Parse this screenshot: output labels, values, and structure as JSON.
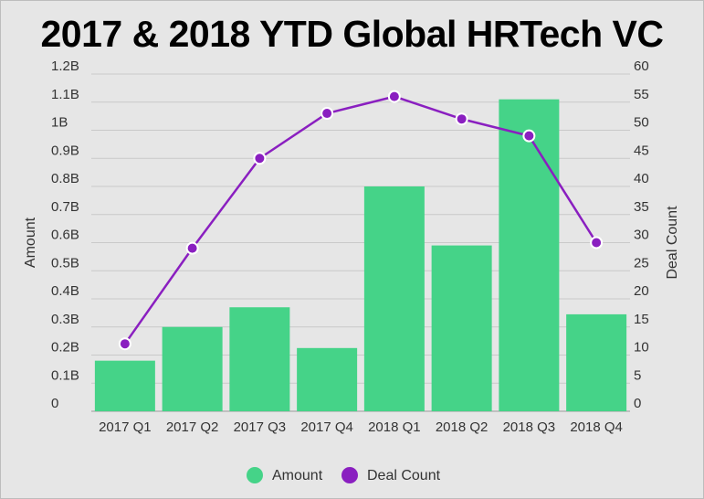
{
  "chart_data": {
    "type": "bar",
    "title": "2017 & 2018 YTD Global HRTech VC",
    "categories": [
      "2017 Q1",
      "2017 Q2",
      "2017 Q3",
      "2017 Q4",
      "2018 Q1",
      "2018 Q2",
      "2018 Q3",
      "2018 Q4"
    ],
    "series": [
      {
        "name": "Amount",
        "type": "bar",
        "axis": "left",
        "color": "#45d388",
        "values": [
          0.18,
          0.3,
          0.37,
          0.225,
          0.8,
          0.59,
          1.11,
          0.345
        ]
      },
      {
        "name": "Deal Count",
        "type": "line",
        "axis": "right",
        "color": "#8a1fc0",
        "values": [
          12,
          29,
          45,
          53,
          56,
          52,
          49,
          30
        ]
      }
    ],
    "ylabel": "Amount",
    "y2label": "Deal Count",
    "ylim": [
      0,
      1.2
    ],
    "y2lim": [
      0,
      60
    ],
    "yticks": [
      "0",
      "0.1B",
      "0.2B",
      "0.3B",
      "0.4B",
      "0.5B",
      "0.6B",
      "0.7B",
      "0.8B",
      "0.9B",
      "1B",
      "1.1B",
      "1.2B"
    ],
    "y2ticks": [
      "0",
      "5",
      "10",
      "15",
      "20",
      "25",
      "30",
      "35",
      "40",
      "45",
      "50",
      "55",
      "60"
    ],
    "grid": true,
    "legend_position": "bottom",
    "background": "#e6e6e6"
  }
}
